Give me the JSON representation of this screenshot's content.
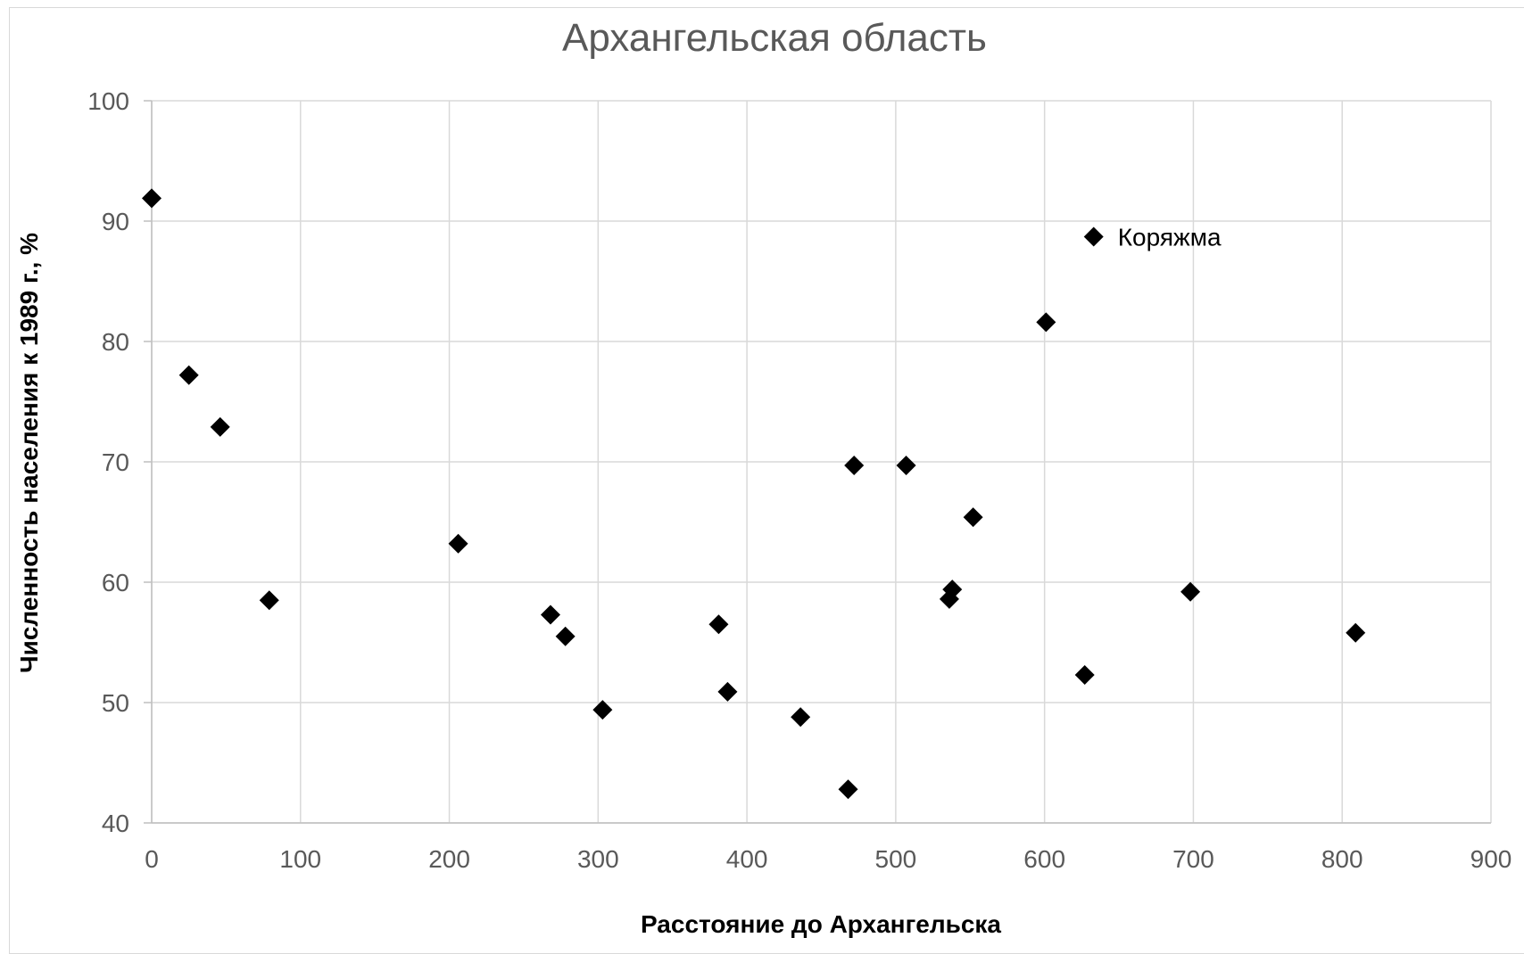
{
  "chart_data": {
    "type": "scatter",
    "title": "Архангельская область",
    "xlabel": "Расстояние до Архангельска",
    "ylabel": "Численность населения к 1989 г., %",
    "xlim": [
      0,
      900
    ],
    "ylim": [
      40,
      100
    ],
    "xticks": [
      0,
      100,
      200,
      300,
      400,
      500,
      600,
      700,
      800,
      900
    ],
    "yticks": [
      40,
      50,
      60,
      70,
      80,
      90,
      100
    ],
    "grid": true,
    "marker": "diamond",
    "marker_color": "#000000",
    "points": [
      {
        "x": 0,
        "y": 91.9
      },
      {
        "x": 25,
        "y": 77.2
      },
      {
        "x": 46,
        "y": 72.9
      },
      {
        "x": 79,
        "y": 58.5
      },
      {
        "x": 206,
        "y": 63.2
      },
      {
        "x": 268,
        "y": 57.3
      },
      {
        "x": 278,
        "y": 55.5
      },
      {
        "x": 303,
        "y": 49.4
      },
      {
        "x": 381,
        "y": 56.5
      },
      {
        "x": 387,
        "y": 50.9
      },
      {
        "x": 436,
        "y": 48.8
      },
      {
        "x": 468,
        "y": 42.8
      },
      {
        "x": 472,
        "y": 69.7
      },
      {
        "x": 507,
        "y": 69.7
      },
      {
        "x": 536,
        "y": 58.6
      },
      {
        "x": 538,
        "y": 59.4
      },
      {
        "x": 552,
        "y": 65.4
      },
      {
        "x": 601,
        "y": 81.6
      },
      {
        "x": 627,
        "y": 52.3
      },
      {
        "x": 633,
        "y": 88.7,
        "label": "Коряжма"
      },
      {
        "x": 698,
        "y": 59.2
      },
      {
        "x": 809,
        "y": 55.8
      }
    ]
  }
}
